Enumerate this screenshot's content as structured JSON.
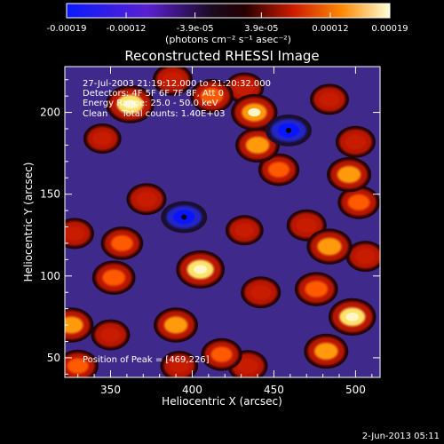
{
  "chart_data": {
    "type": "heatmap",
    "title": "Reconstructed RHESSI Image",
    "xlabel": "Heliocentric X (arcsec)",
    "ylabel": "Heliocentric Y (arcsec)",
    "xlim": [
      322,
      515
    ],
    "ylim": [
      38,
      228
    ],
    "x_ticks": [
      350,
      400,
      450,
      500
    ],
    "y_ticks": [
      50,
      100,
      150,
      200
    ],
    "colorbar": {
      "ticks": [
        "-0.00019",
        "-0.00012",
        "-3.9e-05",
        "3.9e-05",
        "0.00012",
        "0.00019"
      ],
      "units": "(photons cm⁻² s⁻¹ asec⁻²)",
      "range": [
        -0.00019,
        0.00019
      ]
    },
    "annotations": [
      "27-Jul-2003 21:19:12.000 to 21:20:32.000",
      "Detectors: 4F 5F 6F 7F 8F, Att 0",
      "Energy Range: 25.0 - 50.0 keV",
      "Clean     Total counts: 1.40E+03"
    ],
    "peak_label": "Position of Peak = [469,226]",
    "minima": [
      [
        395,
        136
      ],
      [
        459,
        189
      ]
    ],
    "hot_spots": [
      {
        "x": 362,
        "y": 205,
        "v": 0.95
      },
      {
        "x": 345,
        "y": 184,
        "v": 0.45
      },
      {
        "x": 388,
        "y": 220,
        "v": 0.55
      },
      {
        "x": 412,
        "y": 210,
        "v": 0.7
      },
      {
        "x": 432,
        "y": 215,
        "v": 0.5
      },
      {
        "x": 438,
        "y": 200,
        "v": 0.85
      },
      {
        "x": 440,
        "y": 180,
        "v": 0.75
      },
      {
        "x": 453,
        "y": 165,
        "v": 0.6
      },
      {
        "x": 500,
        "y": 182,
        "v": 0.55
      },
      {
        "x": 496,
        "y": 162,
        "v": 0.75
      },
      {
        "x": 502,
        "y": 145,
        "v": 0.65
      },
      {
        "x": 484,
        "y": 208,
        "v": 0.5
      },
      {
        "x": 372,
        "y": 147,
        "v": 0.55
      },
      {
        "x": 328,
        "y": 126,
        "v": 0.5
      },
      {
        "x": 357,
        "y": 120,
        "v": 0.65
      },
      {
        "x": 352,
        "y": 99,
        "v": 0.7
      },
      {
        "x": 405,
        "y": 104,
        "v": 0.95
      },
      {
        "x": 432,
        "y": 128,
        "v": 0.45
      },
      {
        "x": 470,
        "y": 131,
        "v": 0.55
      },
      {
        "x": 484,
        "y": 118,
        "v": 0.8
      },
      {
        "x": 506,
        "y": 112,
        "v": 0.5
      },
      {
        "x": 442,
        "y": 90,
        "v": 0.55
      },
      {
        "x": 476,
        "y": 92,
        "v": 0.7
      },
      {
        "x": 498,
        "y": 75,
        "v": 0.9
      },
      {
        "x": 482,
        "y": 54,
        "v": 0.75
      },
      {
        "x": 326,
        "y": 70,
        "v": 0.75
      },
      {
        "x": 350,
        "y": 64,
        "v": 0.5
      },
      {
        "x": 390,
        "y": 70,
        "v": 0.75
      },
      {
        "x": 418,
        "y": 52,
        "v": 0.6
      },
      {
        "x": 434,
        "y": 45,
        "v": 0.55
      },
      {
        "x": 392,
        "y": 45,
        "v": 0.45
      },
      {
        "x": 330,
        "y": 45,
        "v": 0.6
      }
    ]
  },
  "timestamp": "2-Jun-2013 05:11"
}
